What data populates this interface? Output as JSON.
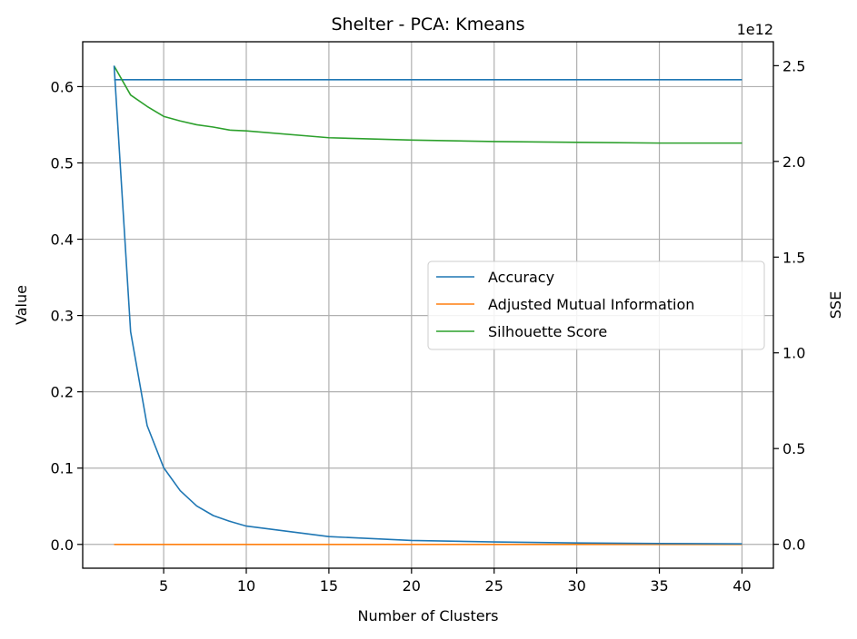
{
  "chart_data": {
    "type": "line",
    "title": "Shelter - PCA: Kmeans",
    "xlabel": "Number of Clusters",
    "ylabel": "Value",
    "y2label": "SSE",
    "y2_offset_text": "1e12",
    "xlim": [
      0.1,
      41.9
    ],
    "ylim": [
      -0.0312,
      0.6588
    ],
    "y2lim": [
      -0.125,
      2.625
    ],
    "x_ticks": [
      5,
      10,
      15,
      20,
      25,
      30,
      35,
      40
    ],
    "y_ticks": [
      0.0,
      0.1,
      0.2,
      0.3,
      0.4,
      0.5,
      0.6
    ],
    "y_tick_labels": [
      "0.0",
      "0.1",
      "0.2",
      "0.3",
      "0.4",
      "0.5",
      "0.6"
    ],
    "y2_ticks": [
      0.0,
      0.5,
      1.0,
      1.5,
      2.0,
      2.5
    ],
    "y2_tick_labels": [
      "0.0",
      "0.5",
      "1.0",
      "1.5",
      "2.0",
      "2.5"
    ],
    "grid": true,
    "legend_position": "center-right",
    "legend": [
      "Accuracy",
      "Adjusted Mutual Information",
      "Silhouette Score"
    ],
    "series": [
      {
        "name": "Accuracy",
        "axis": "left",
        "color": "#1f77b4",
        "x": [
          2,
          40
        ],
        "values": [
          0.609,
          0.609
        ]
      },
      {
        "name": "Adjusted Mutual Information",
        "axis": "left",
        "color": "#ff7f0e",
        "x": [
          2,
          40
        ],
        "values": [
          0.0,
          0.0
        ]
      },
      {
        "name": "Silhouette Score",
        "axis": "left",
        "color": "#2ca02c",
        "x": [
          2,
          3,
          4,
          5,
          6,
          7,
          8,
          9,
          10,
          15,
          20,
          25,
          30,
          35,
          40
        ],
        "values": [
          0.627,
          0.589,
          0.574,
          0.561,
          0.555,
          0.55,
          0.547,
          0.543,
          0.542,
          0.533,
          0.53,
          0.528,
          0.527,
          0.526,
          0.526
        ]
      },
      {
        "name": "SSE",
        "axis": "right",
        "color": "#1f77b4",
        "x": [
          2,
          3,
          4,
          5,
          6,
          7,
          8,
          9,
          10,
          15,
          20,
          25,
          30,
          35,
          40
        ],
        "values": [
          2.5,
          1.11,
          0.62,
          0.4,
          0.28,
          0.2,
          0.15,
          0.12,
          0.095,
          0.04,
          0.02,
          0.012,
          0.007,
          0.004,
          0.002
        ]
      }
    ]
  }
}
